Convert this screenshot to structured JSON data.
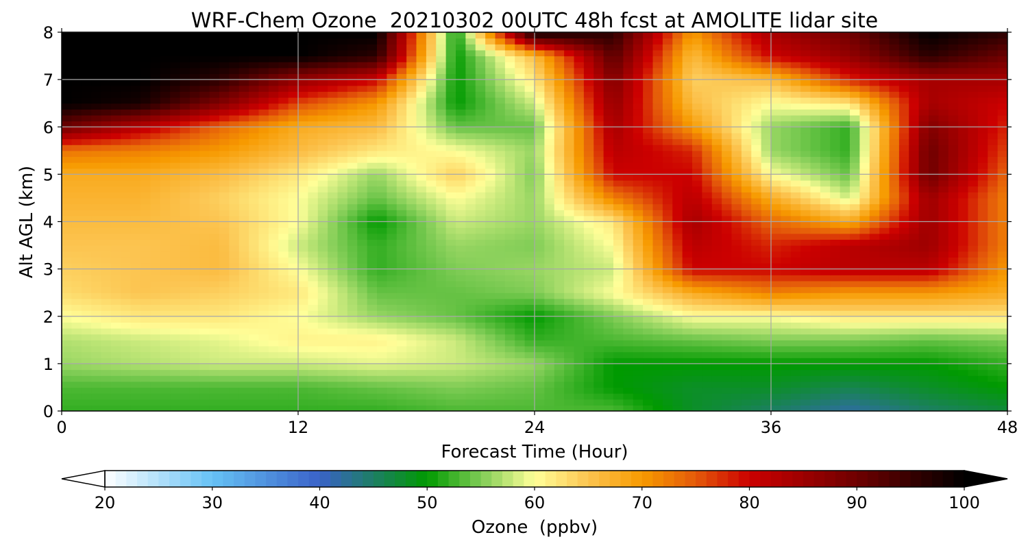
{
  "chart_data": {
    "type": "heatmap",
    "title": "WRF-Chem Ozone  20210302 00UTC 48h fcst at AMOLITE lidar site",
    "xlabel": "Forecast Time (Hour)",
    "ylabel": "Alt AGL (km)",
    "xlim": [
      0,
      48
    ],
    "ylim": [
      0,
      8
    ],
    "x_ticks": [
      0,
      12,
      24,
      36,
      48
    ],
    "y_ticks": [
      0,
      1,
      2,
      3,
      4,
      5,
      6,
      7,
      8
    ],
    "grid": true,
    "grid_x_hours": [
      0,
      4,
      8,
      12,
      16,
      20,
      24,
      28,
      32,
      36,
      40,
      44,
      48
    ],
    "grid_y_km": [
      0,
      0.5,
      1,
      1.5,
      2,
      2.5,
      3,
      3.5,
      4,
      4.5,
      5,
      5.5,
      6,
      6.5,
      7,
      7.5,
      8
    ],
    "z_ppbv": [
      [
        52,
        52,
        52,
        52,
        52,
        53,
        53,
        53,
        48,
        45,
        42,
        45,
        47
      ],
      [
        53,
        53,
        53,
        53,
        54,
        55,
        54,
        50,
        48,
        48,
        46,
        48,
        50
      ],
      [
        56,
        57,
        58,
        58,
        59,
        58,
        56,
        50,
        50,
        50,
        50,
        50,
        52
      ],
      [
        57,
        58,
        59,
        61,
        61,
        58,
        52,
        53,
        54,
        55,
        55,
        54,
        55
      ],
      [
        60,
        62,
        62,
        60,
        56,
        54,
        50,
        55,
        60,
        60,
        62,
        62,
        62
      ],
      [
        63,
        65,
        64,
        62,
        54,
        54,
        55,
        60,
        68,
        72,
        70,
        70,
        68
      ],
      [
        64,
        65,
        66,
        60,
        52,
        55,
        56,
        58,
        80,
        80,
        82,
        82,
        70
      ],
      [
        65,
        65,
        66,
        58,
        52,
        56,
        55,
        60,
        82,
        78,
        82,
        85,
        72
      ],
      [
        66,
        66,
        65,
        60,
        50,
        58,
        56,
        62,
        84,
        74,
        68,
        85,
        72
      ],
      [
        67,
        67,
        64,
        60,
        54,
        60,
        56,
        72,
        82,
        68,
        58,
        85,
        72
      ],
      [
        68,
        68,
        66,
        62,
        56,
        64,
        55,
        80,
        80,
        60,
        54,
        90,
        74
      ],
      [
        73,
        72,
        70,
        66,
        62,
        60,
        56,
        82,
        78,
        56,
        52,
        90,
        76
      ],
      [
        90,
        82,
        74,
        68,
        66,
        54,
        54,
        84,
        70,
        56,
        52,
        88,
        78
      ],
      [
        100,
        98,
        88,
        76,
        70,
        50,
        58,
        86,
        66,
        60,
        62,
        84,
        80
      ],
      [
        100,
        100,
        96,
        86,
        80,
        50,
        62,
        88,
        64,
        66,
        78,
        84,
        84
      ],
      [
        100,
        100,
        100,
        100,
        96,
        50,
        66,
        92,
        66,
        80,
        86,
        96,
        90
      ],
      [
        100,
        100,
        100,
        100,
        100,
        50,
        100,
        96,
        70,
        84,
        90,
        100,
        96
      ]
    ],
    "colorbar": {
      "label": "Ozone  (ppbv)",
      "min": 20,
      "max": 100,
      "ticks": [
        20,
        30,
        40,
        50,
        60,
        70,
        80,
        90,
        100
      ],
      "extend": "both",
      "color_stops": [
        {
          "value": 20,
          "color": "#ffffff"
        },
        {
          "value": 30,
          "color": "#66c2f5"
        },
        {
          "value": 40,
          "color": "#3a62c8"
        },
        {
          "value": 50,
          "color": "#009a00"
        },
        {
          "value": 55,
          "color": "#7fcc55"
        },
        {
          "value": 60,
          "color": "#ffff99"
        },
        {
          "value": 65,
          "color": "#fcc450"
        },
        {
          "value": 70,
          "color": "#f79a00"
        },
        {
          "value": 75,
          "color": "#e45a0a"
        },
        {
          "value": 80,
          "color": "#cc0000"
        },
        {
          "value": 90,
          "color": "#6e0000"
        },
        {
          "value": 100,
          "color": "#000000"
        }
      ]
    }
  }
}
